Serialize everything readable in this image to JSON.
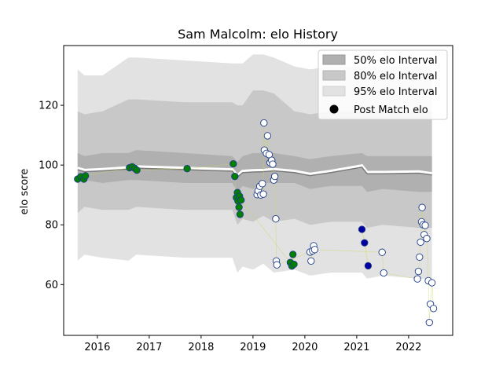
{
  "chart_data": {
    "type": "scatter",
    "title": "Sam Malcolm: elo History",
    "xlabel": "",
    "ylabel": "elo score",
    "xlim": [
      2015.35,
      2022.85
    ],
    "ylim": [
      43,
      140
    ],
    "x_ticks": [
      2016,
      2017,
      2018,
      2019,
      2020,
      2021,
      2022
    ],
    "x_tick_labels": [
      "2016",
      "2017",
      "2018",
      "2019",
      "2020",
      "2021",
      "2022"
    ],
    "y_ticks": [
      60,
      80,
      100,
      120
    ],
    "y_tick_labels": [
      "60",
      "80",
      "100",
      "120"
    ],
    "grid": false,
    "legend_position": "top-right",
    "legend": [
      {
        "label": "50% elo Interval",
        "color": "#b0b0b0"
      },
      {
        "label": "80% elo Interval",
        "color": "#c8c8c8"
      },
      {
        "label": "95% elo Interval",
        "color": "#e2e2e2"
      },
      {
        "label": "Post Match elo",
        "color": "#000000"
      }
    ],
    "bands": {
      "x": [
        2015.62,
        2015.75,
        2016.1,
        2016.6,
        2016.75,
        2017.7,
        2018.6,
        2018.7,
        2018.8,
        2019.0,
        2019.2,
        2019.4,
        2019.8,
        2020.1,
        2020.5,
        2021.1,
        2021.2,
        2021.5,
        2022.2,
        2022.45
      ],
      "mean": [
        99,
        98.3,
        98.6,
        99.2,
        99.5,
        99.0,
        98.5,
        96.5,
        98.0,
        98.2,
        98.3,
        98.6,
        98.0,
        97.0,
        98.0,
        99.8,
        97.6,
        97.6,
        97.8,
        97.2
      ],
      "p50": [
        [
          94,
          104
        ],
        [
          95,
          103
        ],
        [
          94,
          104
        ],
        [
          95,
          104
        ],
        [
          95,
          105
        ],
        [
          94,
          104
        ],
        [
          94,
          103
        ],
        [
          91,
          101
        ],
        [
          93,
          103
        ],
        [
          92,
          104
        ],
        [
          94,
          104
        ],
        [
          94,
          104
        ],
        [
          94,
          103
        ],
        [
          92,
          102
        ],
        [
          93,
          103
        ],
        [
          93,
          104
        ],
        [
          91,
          103
        ],
        [
          92,
          103
        ],
        [
          91,
          103
        ],
        [
          91,
          103
        ]
      ],
      "p80": [
        [
          84,
          118
        ],
        [
          86,
          117
        ],
        [
          85,
          118
        ],
        [
          85,
          122
        ],
        [
          86,
          122
        ],
        [
          85,
          121
        ],
        [
          85,
          121
        ],
        [
          80,
          120
        ],
        [
          82,
          120
        ],
        [
          81,
          125
        ],
        [
          83,
          125
        ],
        [
          81,
          124
        ],
        [
          82,
          118
        ],
        [
          80,
          117
        ],
        [
          81,
          118
        ],
        [
          81,
          118
        ],
        [
          79,
          118
        ],
        [
          80,
          118
        ],
        [
          79,
          118
        ],
        [
          79,
          118
        ]
      ],
      "p95": [
        [
          68,
          132
        ],
        [
          70,
          130
        ],
        [
          69,
          130
        ],
        [
          68,
          136
        ],
        [
          70,
          136
        ],
        [
          69,
          135
        ],
        [
          69,
          134
        ],
        [
          64,
          134
        ],
        [
          66,
          134
        ],
        [
          65,
          137
        ],
        [
          67,
          137
        ],
        [
          64,
          136
        ],
        [
          65,
          133
        ],
        [
          63,
          132
        ],
        [
          64,
          133
        ],
        [
          64,
          133
        ],
        [
          62,
          133
        ],
        [
          63,
          133
        ],
        [
          62,
          133
        ],
        [
          62,
          133
        ]
      ]
    },
    "series": [
      {
        "group": "2015-2019",
        "fill": "#008000",
        "points": [
          [
            2015.62,
            95.3
          ],
          [
            2015.68,
            96.1
          ],
          [
            2015.74,
            95.3
          ],
          [
            2015.77,
            96.4
          ],
          [
            2016.62,
            99.1
          ],
          [
            2016.67,
            99.4
          ],
          [
            2016.72,
            98.9
          ],
          [
            2016.76,
            98.3
          ],
          [
            2017.73,
            98.8
          ],
          [
            2018.62,
            100.4
          ],
          [
            2018.65,
            96.2
          ],
          [
            2018.68,
            89.1
          ],
          [
            2018.7,
            90.8
          ],
          [
            2018.71,
            88.0
          ],
          [
            2018.73,
            85.9
          ],
          [
            2018.74,
            89.6
          ],
          [
            2018.75,
            83.5
          ],
          [
            2018.77,
            88.3
          ],
          [
            2019.72,
            67.4
          ],
          [
            2019.75,
            66.2
          ],
          [
            2019.77,
            70.1
          ],
          [
            2019.79,
            66.8
          ]
        ]
      },
      {
        "group": "2019-2022",
        "fill": "#ffffff",
        "points": [
          [
            2019.08,
            90.1
          ],
          [
            2019.1,
            91.4
          ],
          [
            2019.13,
            92.9
          ],
          [
            2019.15,
            90.0
          ],
          [
            2019.18,
            93.8
          ],
          [
            2019.2,
            90.3
          ],
          [
            2019.21,
            114.1
          ],
          [
            2019.22,
            105.0
          ],
          [
            2019.26,
            103.9
          ],
          [
            2019.28,
            109.8
          ],
          [
            2019.31,
            103.5
          ],
          [
            2019.33,
            100.8
          ],
          [
            2019.36,
            101.6
          ],
          [
            2019.38,
            100.3
          ],
          [
            2019.4,
            95.0
          ],
          [
            2019.42,
            96.2
          ],
          [
            2019.44,
            82.0
          ],
          [
            2019.45,
            67.9
          ],
          [
            2019.46,
            66.6
          ],
          [
            2020.1,
            70.9
          ],
          [
            2020.12,
            67.9
          ],
          [
            2020.15,
            71.3
          ],
          [
            2020.17,
            73.0
          ],
          [
            2020.19,
            71.7
          ],
          [
            2021.49,
            70.8
          ],
          [
            2021.52,
            63.9
          ],
          [
            2022.17,
            61.9
          ],
          [
            2022.19,
            64.4
          ],
          [
            2022.21,
            69.2
          ],
          [
            2022.23,
            74.2
          ],
          [
            2022.25,
            81.0
          ],
          [
            2022.26,
            85.8
          ],
          [
            2022.28,
            80.0
          ],
          [
            2022.3,
            76.7
          ],
          [
            2022.32,
            79.8
          ],
          [
            2022.35,
            75.4
          ],
          [
            2022.38,
            61.3
          ],
          [
            2022.4,
            47.3
          ],
          [
            2022.42,
            53.5
          ],
          [
            2022.45,
            60.6
          ],
          [
            2022.48,
            52.0
          ]
        ]
      },
      {
        "group": "2021",
        "fill": "#0000a0",
        "points": [
          [
            2021.1,
            78.5
          ],
          [
            2021.15,
            74.0
          ],
          [
            2021.22,
            66.3
          ]
        ]
      }
    ]
  }
}
